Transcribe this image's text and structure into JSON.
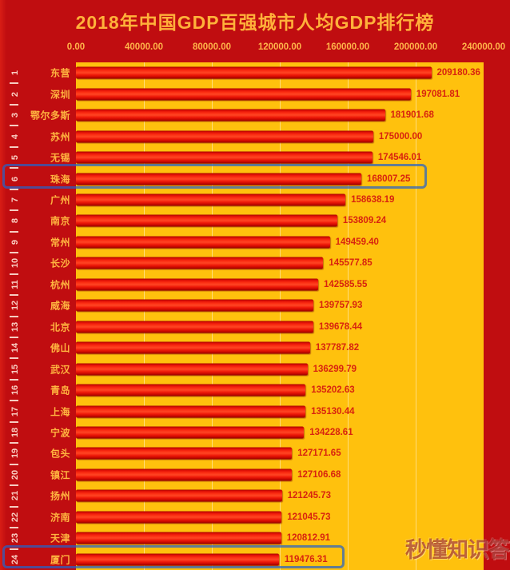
{
  "title": "2018年中国GDP百强城市人均GDP排行榜",
  "watermark": "秒懂知识答",
  "colors": {
    "background_red": "#c00d10",
    "plot_gold": "#ffc10d",
    "bar_red": "#f01b0a",
    "label_gold": "#ffb540",
    "value_red": "#d8230f",
    "rank_pink": "#f9cfc3",
    "highlight_blue": "rgba(38,98,200,0.72)"
  },
  "chart_data": {
    "type": "bar",
    "orientation": "horizontal",
    "title": "2018年中国GDP百强城市人均GDP排行榜",
    "xlabel": "",
    "ylabel": "",
    "xlim": [
      0,
      240000
    ],
    "grid": true,
    "x_ticks": [
      "0.00",
      "40000.00",
      "80000.00",
      "120000.00",
      "160000.00",
      "200000.00",
      "240000.00"
    ],
    "x_tick_values": [
      0,
      40000,
      80000,
      120000,
      160000,
      200000,
      240000
    ],
    "highlighted_ranks": [
      6,
      24
    ],
    "rows": [
      {
        "rank": "1",
        "city": "东营",
        "value": 209180.36,
        "label": "209180.36"
      },
      {
        "rank": "2",
        "city": "深圳",
        "value": 197081.81,
        "label": "197081.81"
      },
      {
        "rank": "3",
        "city": "鄂尔多斯",
        "value": 181901.68,
        "label": "181901.68"
      },
      {
        "rank": "4",
        "city": "苏州",
        "value": 175000.0,
        "label": "175000.00"
      },
      {
        "rank": "5",
        "city": "无锡",
        "value": 174546.01,
        "label": "174546.01"
      },
      {
        "rank": "6",
        "city": "珠海",
        "value": 168007.25,
        "label": "168007.25"
      },
      {
        "rank": "7",
        "city": "广州",
        "value": 158638.19,
        "label": "158638.19"
      },
      {
        "rank": "8",
        "city": "南京",
        "value": 153809.24,
        "label": "153809.24"
      },
      {
        "rank": "9",
        "city": "常州",
        "value": 149459.4,
        "label": "149459.40"
      },
      {
        "rank": "10",
        "city": "长沙",
        "value": 145577.85,
        "label": "145577.85"
      },
      {
        "rank": "11",
        "city": "杭州",
        "value": 142585.55,
        "label": "142585.55"
      },
      {
        "rank": "12",
        "city": "威海",
        "value": 139757.93,
        "label": "139757.93"
      },
      {
        "rank": "13",
        "city": "北京",
        "value": 139678.44,
        "label": "139678.44"
      },
      {
        "rank": "14",
        "city": "佛山",
        "value": 137787.82,
        "label": "137787.82"
      },
      {
        "rank": "15",
        "city": "武汉",
        "value": 136299.79,
        "label": "136299.79"
      },
      {
        "rank": "16",
        "city": "青岛",
        "value": 135202.63,
        "label": "135202.63"
      },
      {
        "rank": "17",
        "city": "上海",
        "value": 135130.44,
        "label": "135130.44"
      },
      {
        "rank": "18",
        "city": "宁波",
        "value": 134228.61,
        "label": "134228.61"
      },
      {
        "rank": "19",
        "city": "包头",
        "value": 127171.65,
        "label": "127171.65"
      },
      {
        "rank": "20",
        "city": "镇江",
        "value": 127106.68,
        "label": "127106.68"
      },
      {
        "rank": "21",
        "city": "扬州",
        "value": 121245.73,
        "label": "121245.73"
      },
      {
        "rank": "22",
        "city": "济南",
        "value": 121045.73,
        "label": "121045.73"
      },
      {
        "rank": "23",
        "city": "天津",
        "value": 120812.91,
        "label": "120812.91"
      },
      {
        "rank": "24",
        "city": "厦门",
        "value": 119476.31,
        "label": "119476.31"
      }
    ]
  }
}
